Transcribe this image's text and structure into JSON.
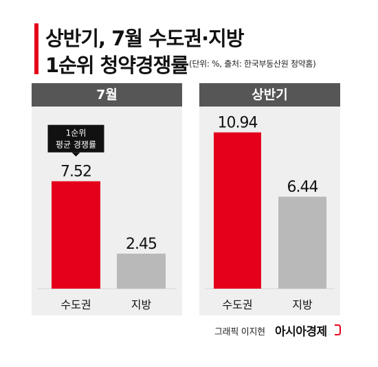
{
  "title": {
    "line1": "상반기, 7월 수도권·지방",
    "line2": "1순위 청약경쟁률",
    "source": "(단위: %, 출처: 한국부동산원 청약홈)"
  },
  "colors": {
    "accent": "#e4001b",
    "gray_bar": "#b9b9b9",
    "panel_bg": "#efefef",
    "header_bg": "#565656"
  },
  "chart_data": [
    {
      "type": "bar",
      "title": "7월",
      "categories": [
        "수도권",
        "지방"
      ],
      "values": [
        7.52,
        2.45
      ],
      "value_labels": [
        "7.52",
        "2.45"
      ],
      "colors": [
        "#e4001b",
        "#b9b9b9"
      ],
      "ylim": [
        0,
        11.5
      ],
      "annotation": {
        "line1": "1순위",
        "line2": "평균 경쟁률"
      }
    },
    {
      "type": "bar",
      "title": "상반기",
      "categories": [
        "수도권",
        "지방"
      ],
      "values": [
        10.94,
        6.44
      ],
      "value_labels": [
        "10.94",
        "6.44"
      ],
      "colors": [
        "#e4001b",
        "#b9b9b9"
      ],
      "ylim": [
        0,
        11.5
      ]
    }
  ],
  "footer": {
    "credit": "그래픽 이지현",
    "logo": "아시아경제"
  }
}
